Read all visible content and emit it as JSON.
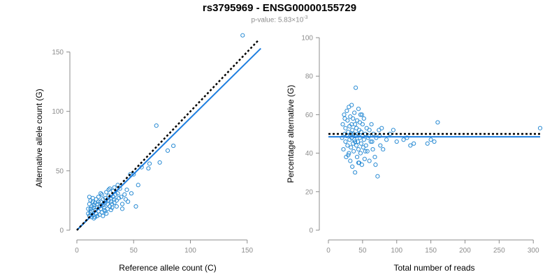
{
  "title": "rs3795969 - ENSG00000155729",
  "subtitle": {
    "prefix": "p-value: 5.83×10",
    "exponent": "-3"
  },
  "colors": {
    "points": "#2b8cd4",
    "fit": "#1f7fe0",
    "expected": "#000000",
    "axis": "#8c8c8c"
  },
  "chart_data": [
    {
      "type": "scatter",
      "xlabel": "Reference allele count (C)",
      "ylabel": "Alternative allele count (G)",
      "xlim": [
        0,
        160
      ],
      "ylim": [
        0,
        155
      ],
      "xticks": [
        0,
        50,
        100,
        150
      ],
      "yticks": [
        0,
        50,
        100,
        150
      ],
      "expected_line": [
        [
          0,
          0
        ],
        [
          160,
          160
        ]
      ],
      "fit_line": [
        [
          0,
          0
        ],
        [
          162,
          153
        ]
      ],
      "points": [
        [
          10,
          18
        ],
        [
          10,
          14
        ],
        [
          11,
          22
        ],
        [
          11,
          28
        ],
        [
          11,
          12
        ],
        [
          12,
          18
        ],
        [
          12,
          15
        ],
        [
          13,
          20
        ],
        [
          13,
          11
        ],
        [
          13,
          16
        ],
        [
          14,
          24
        ],
        [
          14,
          13
        ],
        [
          15,
          19
        ],
        [
          15,
          21
        ],
        [
          15,
          10
        ],
        [
          16,
          17
        ],
        [
          16,
          23
        ],
        [
          17,
          14
        ],
        [
          17,
          26
        ],
        [
          18,
          19
        ],
        [
          18,
          12
        ],
        [
          18,
          22
        ],
        [
          19,
          16
        ],
        [
          19,
          28
        ],
        [
          20,
          20
        ],
        [
          20,
          13
        ],
        [
          21,
          24
        ],
        [
          21,
          18
        ],
        [
          22,
          30
        ],
        [
          22,
          15
        ],
        [
          23,
          21
        ],
        [
          23,
          26
        ],
        [
          24,
          17
        ],
        [
          24,
          19
        ],
        [
          25,
          27
        ],
        [
          25,
          23
        ],
        [
          26,
          14
        ],
        [
          26,
          32
        ],
        [
          27,
          22
        ],
        [
          27,
          18
        ],
        [
          28,
          25
        ],
        [
          28,
          29
        ],
        [
          29,
          20
        ],
        [
          29,
          35
        ],
        [
          30,
          24
        ],
        [
          30,
          27
        ],
        [
          31,
          22
        ],
        [
          31,
          19
        ],
        [
          32,
          33
        ],
        [
          32,
          28
        ],
        [
          33,
          26
        ],
        [
          33,
          36
        ],
        [
          34,
          30
        ],
        [
          35,
          25
        ],
        [
          35,
          20
        ],
        [
          36,
          31
        ],
        [
          37,
          27
        ],
        [
          38,
          35
        ],
        [
          40,
          22
        ],
        [
          40,
          18
        ],
        [
          42,
          30
        ],
        [
          43,
          26
        ],
        [
          44,
          34
        ],
        [
          45,
          24
        ],
        [
          47,
          47
        ],
        [
          48,
          31
        ],
        [
          50,
          47
        ],
        [
          52,
          20
        ],
        [
          54,
          38
        ],
        [
          57,
          53
        ],
        [
          63,
          52
        ],
        [
          64,
          56
        ],
        [
          70,
          88
        ],
        [
          73,
          57
        ],
        [
          80,
          67
        ],
        [
          85,
          71
        ],
        [
          146,
          164
        ],
        [
          12,
          25
        ],
        [
          14,
          27
        ],
        [
          16,
          11
        ],
        [
          19,
          24
        ],
        [
          21,
          31
        ],
        [
          23,
          12
        ],
        [
          25,
          16
        ],
        [
          28,
          34
        ],
        [
          30,
          17
        ],
        [
          33,
          23
        ],
        [
          36,
          38
        ],
        [
          39,
          28
        ]
      ]
    },
    {
      "type": "scatter",
      "xlabel": "Total number of reads",
      "ylabel": "Percentage alternative (G)",
      "xlim": [
        0,
        310
      ],
      "ylim": [
        0,
        100
      ],
      "xticks": [
        0,
        50,
        100,
        150,
        200,
        250,
        300
      ],
      "yticks": [
        0,
        20,
        40,
        60,
        80,
        100
      ],
      "expected_line": [
        [
          0,
          50
        ],
        [
          310,
          50
        ]
      ],
      "fit_line": [
        [
          0,
          48.5
        ],
        [
          310,
          48.5
        ]
      ],
      "points": [
        [
          20,
          48
        ],
        [
          21,
          55
        ],
        [
          22,
          42
        ],
        [
          23,
          60
        ],
        [
          24,
          50
        ],
        [
          25,
          46
        ],
        [
          25,
          53
        ],
        [
          26,
          38
        ],
        [
          27,
          62
        ],
        [
          27,
          49
        ],
        [
          28,
          44
        ],
        [
          28,
          57
        ],
        [
          29,
          51
        ],
        [
          30,
          40
        ],
        [
          30,
          64
        ],
        [
          31,
          47
        ],
        [
          31,
          54
        ],
        [
          32,
          36
        ],
        [
          32,
          59
        ],
        [
          33,
          50
        ],
        [
          33,
          43
        ],
        [
          34,
          65
        ],
        [
          34,
          48
        ],
        [
          35,
          52
        ],
        [
          35,
          33
        ],
        [
          36,
          45
        ],
        [
          36,
          58
        ],
        [
          37,
          50
        ],
        [
          37,
          41
        ],
        [
          38,
          61
        ],
        [
          38,
          47
        ],
        [
          39,
          55
        ],
        [
          39,
          30
        ],
        [
          40,
          74
        ],
        [
          40,
          49
        ],
        [
          41,
          44
        ],
        [
          41,
          53
        ],
        [
          42,
          38
        ],
        [
          42,
          57
        ],
        [
          43,
          50
        ],
        [
          43,
          46
        ],
        [
          44,
          63
        ],
        [
          44,
          42
        ],
        [
          45,
          52
        ],
        [
          45,
          35
        ],
        [
          46,
          48
        ],
        [
          46,
          56
        ],
        [
          47,
          40
        ],
        [
          47,
          60
        ],
        [
          48,
          45
        ],
        [
          48,
          51
        ],
        [
          49,
          34
        ],
        [
          50,
          49
        ],
        [
          50,
          55
        ],
        [
          51,
          43
        ],
        [
          52,
          58
        ],
        [
          52,
          47
        ],
        [
          53,
          37
        ],
        [
          54,
          50
        ],
        [
          55,
          44
        ],
        [
          56,
          53
        ],
        [
          57,
          41
        ],
        [
          58,
          48
        ],
        [
          60,
          52
        ],
        [
          60,
          36
        ],
        [
          62,
          46
        ],
        [
          63,
          55
        ],
        [
          65,
          42
        ],
        [
          66,
          50
        ],
        [
          68,
          38
        ],
        [
          70,
          48
        ],
        [
          72,
          28
        ],
        [
          74,
          52
        ],
        [
          76,
          44
        ],
        [
          78,
          53
        ],
        [
          80,
          42
        ],
        [
          90,
          50
        ],
        [
          95,
          52
        ],
        [
          100,
          46
        ],
        [
          110,
          47
        ],
        [
          115,
          48
        ],
        [
          120,
          44
        ],
        [
          125,
          45
        ],
        [
          145,
          45
        ],
        [
          150,
          47
        ],
        [
          155,
          46
        ],
        [
          160,
          56
        ],
        [
          310,
          53
        ],
        [
          24,
          58
        ],
        [
          29,
          39
        ],
        [
          34,
          55
        ],
        [
          39,
          46
        ],
        [
          44,
          35
        ],
        [
          49,
          60
        ],
        [
          54,
          41
        ],
        [
          59,
          49
        ],
        [
          64,
          46
        ],
        [
          69,
          34
        ],
        [
          75,
          49
        ],
        [
          85,
          47
        ]
      ]
    }
  ]
}
